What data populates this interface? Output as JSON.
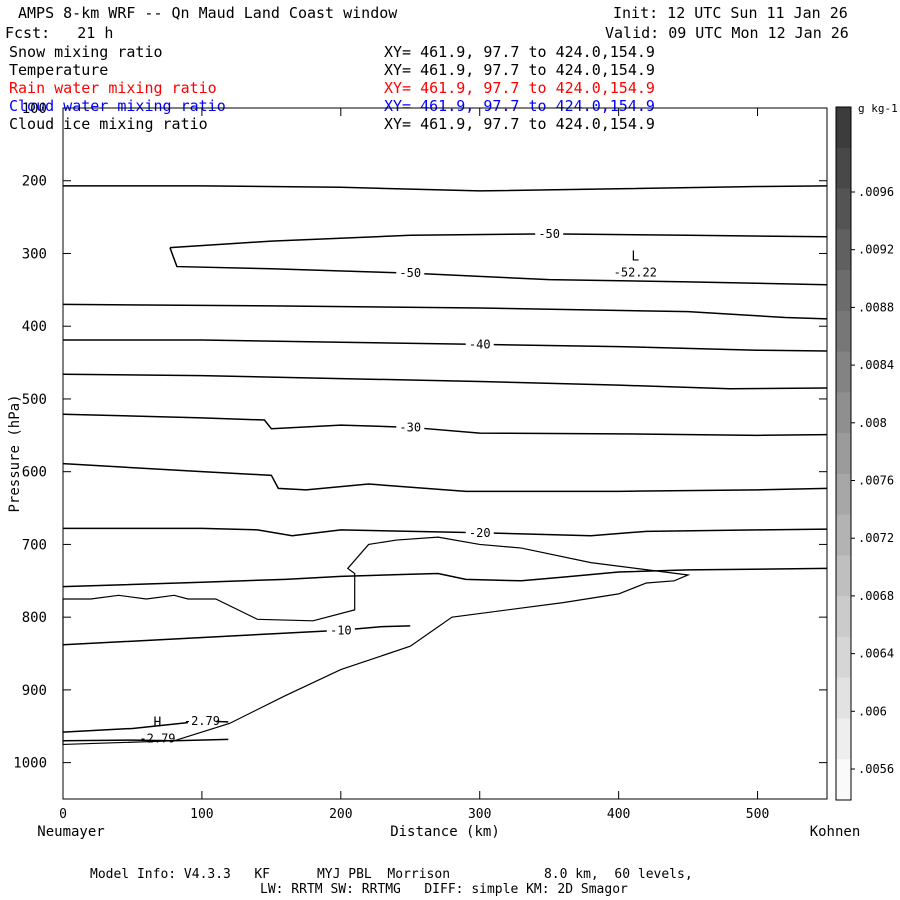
{
  "header": {
    "title": "AMPS 8-km WRF -- Qn Maud Land Coast window",
    "init": "Init: 12 UTC Sun 11 Jan 26",
    "fcst": "Fcst:   21 h",
    "valid": "Valid: 09 UTC Mon 12 Jan 26"
  },
  "fields": [
    {
      "name": "Snow mixing ratio",
      "xy": "XY= 461.9, 97.7 to 424.0,154.9",
      "color": "#000000"
    },
    {
      "name": "Temperature",
      "xy": "XY= 461.9, 97.7 to 424.0,154.9",
      "color": "#000000"
    },
    {
      "name": "Rain water mixing ratio",
      "xy": "XY= 461.9, 97.7 to 424.0,154.9",
      "color": "#ff0000"
    },
    {
      "name": "Cloud water mixing ratio",
      "xy": "XY= 461.9, 97.7 to 424.0,154.9",
      "color": "#0000ff"
    },
    {
      "name": "Cloud ice mixing ratio",
      "xy": "XY= 461.9, 97.7 to 424.0,154.9",
      "color": "#000000"
    }
  ],
  "colorbar": {
    "unit": "g kg-1",
    "labels": [
      ".0096",
      ".0092",
      ".0088",
      ".0084",
      ".008",
      ".0076",
      ".0072",
      ".0068",
      ".0064",
      ".006",
      ".0056"
    ]
  },
  "footer": {
    "line1": "Model Info: V4.3.3   KF      MYJ PBL  Morrison            8.0 km,  60 levels,",
    "line2": "LW: RRTM SW: RRTMG   DIFF: simple KM: 2D Smagor"
  },
  "chart_data": {
    "type": "contour",
    "xlabel": "Distance (km)",
    "ylabel": "Pressure (hPa)",
    "xlim": [
      0,
      550
    ],
    "ylim": [
      1050,
      100
    ],
    "xticks": [
      0,
      100,
      200,
      300,
      400,
      500
    ],
    "yticks": [
      100,
      200,
      300,
      400,
      500,
      600,
      700,
      800,
      900,
      1000
    ],
    "x_start_label": "Neumayer",
    "x_end_label": "Kohnen",
    "temperature_contours": [
      {
        "pts": [
          [
            0,
            207
          ],
          [
            100,
            207
          ],
          [
            200,
            209
          ],
          [
            300,
            214
          ],
          [
            400,
            211
          ],
          [
            500,
            208
          ],
          [
            550,
            207
          ]
        ]
      },
      {
        "label": "-50",
        "pts": [
          [
            77,
            292
          ],
          [
            150,
            283
          ],
          [
            250,
            275
          ],
          [
            350,
            273
          ],
          [
            450,
            275
          ],
          [
            550,
            277
          ]
        ]
      },
      {
        "label": "-50",
        "pts": [
          [
            77,
            292
          ],
          [
            82,
            318
          ],
          [
            150,
            321
          ],
          [
            250,
            327
          ],
          [
            350,
            336
          ],
          [
            450,
            339
          ],
          [
            550,
            343
          ]
        ]
      },
      {
        "pts": [
          [
            0,
            370
          ],
          [
            150,
            372
          ],
          [
            300,
            375
          ],
          [
            450,
            380
          ],
          [
            520,
            388
          ],
          [
            550,
            390
          ]
        ]
      },
      {
        "label": "-40",
        "pts": [
          [
            0,
            419
          ],
          [
            100,
            419
          ],
          [
            200,
            422
          ],
          [
            300,
            425
          ],
          [
            400,
            428
          ],
          [
            500,
            433
          ],
          [
            550,
            434
          ]
        ]
      },
      {
        "pts": [
          [
            0,
            466
          ],
          [
            100,
            468
          ],
          [
            200,
            472
          ],
          [
            300,
            476
          ],
          [
            400,
            481
          ],
          [
            480,
            486
          ],
          [
            550,
            485
          ]
        ]
      },
      {
        "label": "-30",
        "pts": [
          [
            0,
            521
          ],
          [
            100,
            526
          ],
          [
            145,
            529
          ],
          [
            150,
            541
          ],
          [
            200,
            536
          ],
          [
            250,
            539
          ],
          [
            300,
            547
          ],
          [
            400,
            548
          ],
          [
            500,
            550
          ],
          [
            550,
            549
          ]
        ]
      },
      {
        "pts": [
          [
            0,
            589
          ],
          [
            100,
            600
          ],
          [
            150,
            605
          ],
          [
            155,
            623
          ],
          [
            175,
            625
          ],
          [
            220,
            617
          ],
          [
            290,
            627
          ],
          [
            400,
            627
          ],
          [
            500,
            625
          ],
          [
            550,
            623
          ]
        ]
      },
      {
        "label": "-20",
        "pts": [
          [
            0,
            678
          ],
          [
            100,
            678
          ],
          [
            140,
            680
          ],
          [
            165,
            688
          ],
          [
            200,
            680
          ],
          [
            300,
            684
          ],
          [
            380,
            688
          ],
          [
            420,
            682
          ],
          [
            500,
            680
          ],
          [
            550,
            679
          ]
        ]
      },
      {
        "pts": [
          [
            0,
            758
          ],
          [
            100,
            752
          ],
          [
            160,
            748
          ],
          [
            200,
            744
          ],
          [
            250,
            741
          ],
          [
            270,
            740
          ],
          [
            290,
            748
          ],
          [
            330,
            750
          ],
          [
            360,
            745
          ],
          [
            400,
            738
          ],
          [
            450,
            735
          ],
          [
            550,
            733
          ]
        ]
      },
      {
        "label": "-10",
        "pts": [
          [
            0,
            838
          ],
          [
            80,
            830
          ],
          [
            150,
            823
          ],
          [
            200,
            818
          ],
          [
            230,
            813
          ],
          [
            250,
            812
          ]
        ]
      },
      {
        "label": "-2.79",
        "pts": [
          [
            0,
            958
          ],
          [
            50,
            953
          ],
          [
            100,
            943
          ],
          [
            119,
            944
          ]
        ]
      },
      {
        "pts": [
          [
            0,
            970
          ],
          [
            50,
            969
          ],
          [
            80,
            970
          ],
          [
            119,
            968
          ]
        ]
      }
    ],
    "terrain_outline": [
      [
        0,
        975
      ],
      [
        80,
        970
      ],
      [
        120,
        946
      ],
      [
        160,
        908
      ],
      [
        200,
        872
      ],
      [
        250,
        840
      ],
      [
        280,
        800
      ],
      [
        360,
        780
      ],
      [
        400,
        768
      ],
      [
        420,
        753
      ],
      [
        440,
        750
      ],
      [
        450,
        742
      ],
      [
        380,
        725
      ],
      [
        330,
        705
      ],
      [
        300,
        700
      ],
      [
        270,
        690
      ],
      [
        240,
        694
      ],
      [
        220,
        700
      ],
      [
        205,
        733
      ],
      [
        210,
        740
      ],
      [
        210,
        790
      ],
      [
        180,
        805
      ],
      [
        140,
        803
      ],
      [
        110,
        775
      ],
      [
        90,
        775
      ],
      [
        80,
        770
      ],
      [
        60,
        775
      ],
      [
        40,
        770
      ],
      [
        20,
        775
      ],
      [
        0,
        775
      ]
    ],
    "extrema": [
      {
        "type": "L",
        "value": "-52.22",
        "x": 412,
        "p": 321
      },
      {
        "type": "H",
        "value": "-2.79",
        "x": 68,
        "p": 961
      }
    ]
  }
}
